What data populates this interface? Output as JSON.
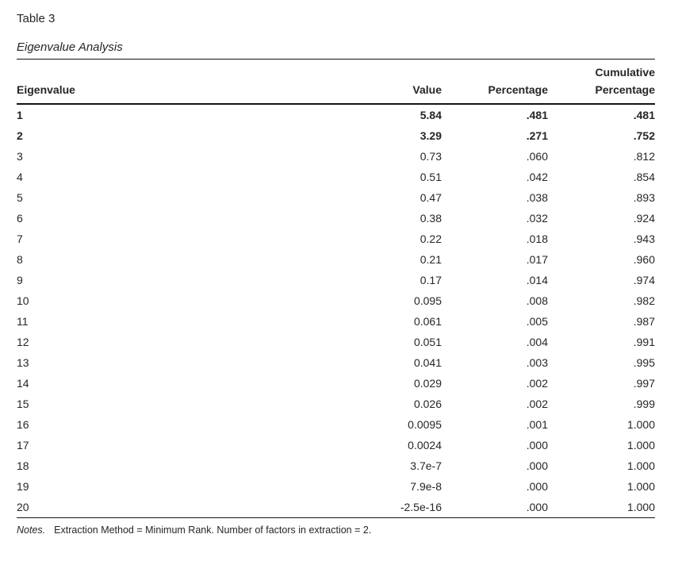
{
  "document": {
    "table_number": "Table 3",
    "table_title": "Eigenvalue Analysis",
    "notes": {
      "label": "Notes.",
      "text": "Extraction Method = Minimum Rank. Number of factors in extraction = 2."
    }
  },
  "table": {
    "headers": {
      "eigenvalue": "Eigenvalue",
      "value": "Value",
      "percentage": "Percentage",
      "cumulative_line1": "Cumulative",
      "cumulative_line2": "Percentage"
    },
    "rows": [
      {
        "eigenvalue": "1",
        "value": "5.84",
        "percentage": ".481",
        "cumulative": ".481",
        "bold": true
      },
      {
        "eigenvalue": "2",
        "value": "3.29",
        "percentage": ".271",
        "cumulative": ".752",
        "bold": true
      },
      {
        "eigenvalue": "3",
        "value": "0.73",
        "percentage": ".060",
        "cumulative": ".812",
        "bold": false
      },
      {
        "eigenvalue": "4",
        "value": "0.51",
        "percentage": ".042",
        "cumulative": ".854",
        "bold": false
      },
      {
        "eigenvalue": "5",
        "value": "0.47",
        "percentage": ".038",
        "cumulative": ".893",
        "bold": false
      },
      {
        "eigenvalue": "6",
        "value": "0.38",
        "percentage": ".032",
        "cumulative": ".924",
        "bold": false
      },
      {
        "eigenvalue": "7",
        "value": "0.22",
        "percentage": ".018",
        "cumulative": ".943",
        "bold": false
      },
      {
        "eigenvalue": "8",
        "value": "0.21",
        "percentage": ".017",
        "cumulative": ".960",
        "bold": false
      },
      {
        "eigenvalue": "9",
        "value": "0.17",
        "percentage": ".014",
        "cumulative": ".974",
        "bold": false
      },
      {
        "eigenvalue": "10",
        "value": "0.095",
        "percentage": ".008",
        "cumulative": ".982",
        "bold": false
      },
      {
        "eigenvalue": "11",
        "value": "0.061",
        "percentage": ".005",
        "cumulative": ".987",
        "bold": false
      },
      {
        "eigenvalue": "12",
        "value": "0.051",
        "percentage": ".004",
        "cumulative": ".991",
        "bold": false
      },
      {
        "eigenvalue": "13",
        "value": "0.041",
        "percentage": ".003",
        "cumulative": ".995",
        "bold": false
      },
      {
        "eigenvalue": "14",
        "value": "0.029",
        "percentage": ".002",
        "cumulative": ".997",
        "bold": false
      },
      {
        "eigenvalue": "15",
        "value": "0.026",
        "percentage": ".002",
        "cumulative": ".999",
        "bold": false
      },
      {
        "eigenvalue": "16",
        "value": "0.0095",
        "percentage": ".001",
        "cumulative": "1.000",
        "bold": false
      },
      {
        "eigenvalue": "17",
        "value": "0.0024",
        "percentage": ".000",
        "cumulative": "1.000",
        "bold": false
      },
      {
        "eigenvalue": "18",
        "value": "3.7e-7",
        "percentage": ".000",
        "cumulative": "1.000",
        "bold": false
      },
      {
        "eigenvalue": "19",
        "value": "7.9e-8",
        "percentage": ".000",
        "cumulative": "1.000",
        "bold": false
      },
      {
        "eigenvalue": "20",
        "value": "-2.5e-16",
        "percentage": ".000",
        "cumulative": "1.000",
        "bold": false
      }
    ]
  }
}
